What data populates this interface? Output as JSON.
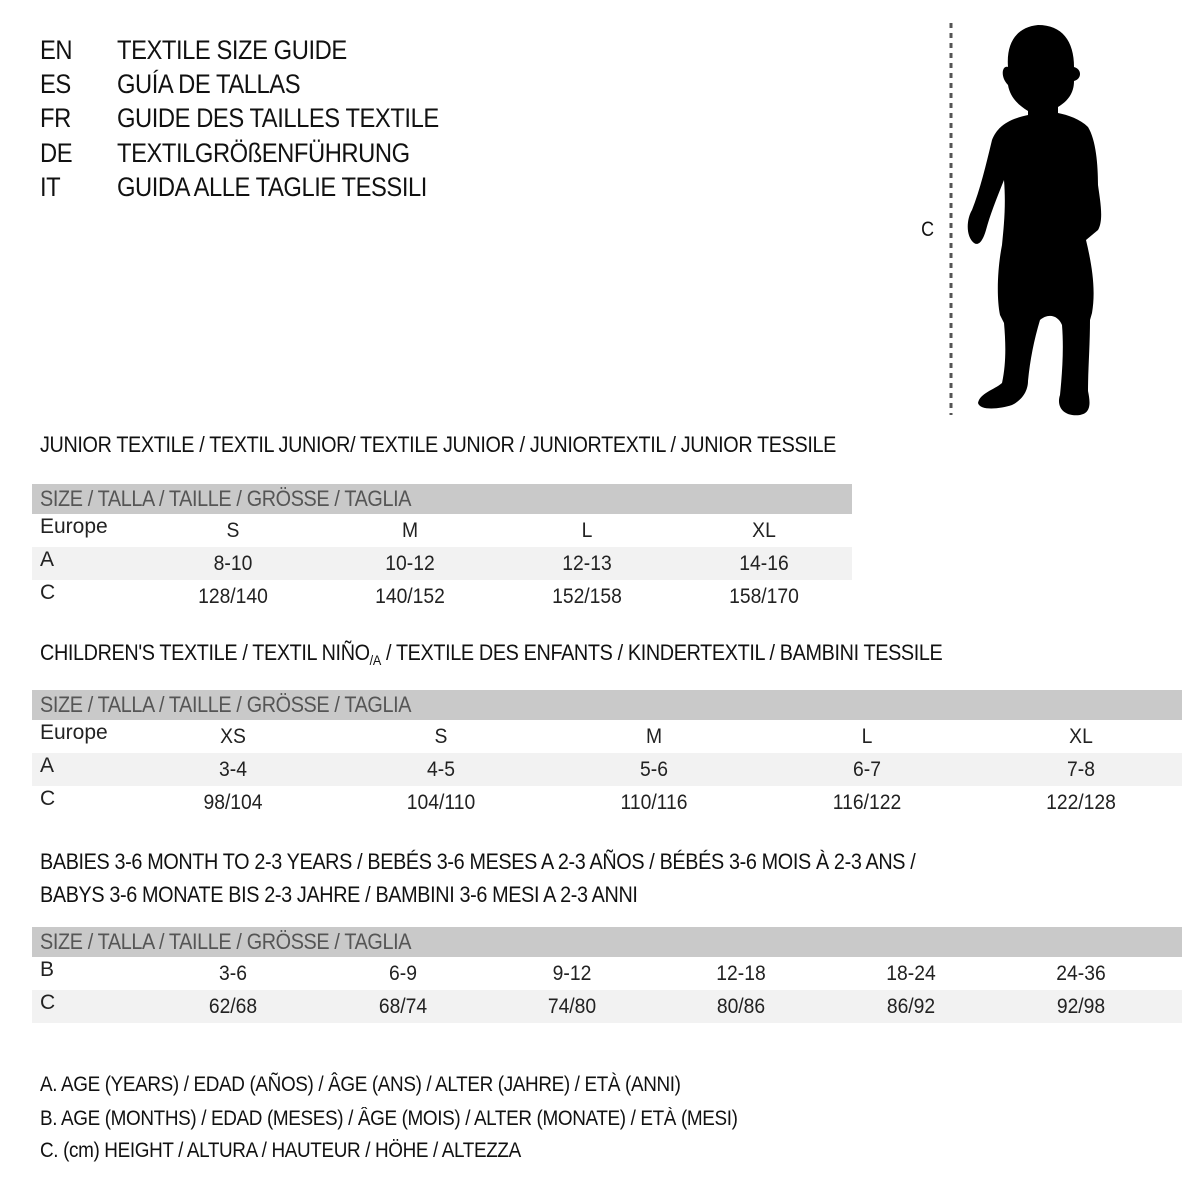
{
  "languages": [
    {
      "code": "EN",
      "title": "TEXTILE SIZE GUIDE"
    },
    {
      "code": "ES",
      "title": "GUÍA DE TALLAS"
    },
    {
      "code": "FR",
      "title": "GUIDE DES TAILLES TEXTILE"
    },
    {
      "code": "DE",
      "title": "TEXTILGRÖßENFÜHRUNG"
    },
    {
      "code": "IT",
      "title": "GUIDA ALLE TAGLIE TESSILI"
    }
  ],
  "figure": {
    "measure_label": "C",
    "icon": "child-silhouette-icon"
  },
  "junior": {
    "title": "JUNIOR TEXTILE / TEXTIL JUNIOR/ TEXTILE JUNIOR / JUNIORTEXTIL / JUNIOR TESSILE",
    "header": "SIZE / TALLA / TAILLE / GRÖSSE / TAGLIA",
    "rows": [
      {
        "label": "Europe",
        "values": [
          "S",
          "M",
          "L",
          "XL"
        ]
      },
      {
        "label": "A",
        "values": [
          "8-10",
          "10-12",
          "12-13",
          "14-16"
        ]
      },
      {
        "label": "C",
        "values": [
          "128/140",
          "140/152",
          "152/158",
          "158/170"
        ]
      }
    ]
  },
  "children": {
    "title_part1": "CHILDREN'S TEXTILE / TEXTIL NIÑO",
    "title_sub": "/A",
    "title_part2": " / TEXTILE DES ENFANTS / KINDERTEXTIL / BAMBINI TESSILE",
    "header": "SIZE / TALLA / TAILLE / GRÖSSE / TAGLIA",
    "rows": [
      {
        "label": "Europe",
        "values": [
          "XS",
          "S",
          "M",
          "L",
          "XL"
        ]
      },
      {
        "label": "A",
        "values": [
          "3-4",
          "4-5",
          "5-6",
          "6-7",
          "7-8"
        ]
      },
      {
        "label": "C",
        "values": [
          "98/104",
          "104/110",
          "110/116",
          "116/122",
          "122/128"
        ]
      }
    ]
  },
  "babies": {
    "title_line1": "BABIES 3-6 MONTH TO 2-3 YEARS / BEBÉS 3-6 MESES A 2-3 AÑOS / BÉBÉS 3-6 MOIS À 2-3 ANS /",
    "title_line2": "BABYS 3-6 MONATE BIS 2-3 JAHRE / BAMBINI 3-6 MESI A 2-3 ANNI",
    "header": "SIZE / TALLA / TAILLE / GRÖSSE / TAGLIA",
    "rows": [
      {
        "label": "B",
        "values": [
          "3-6",
          "6-9",
          "9-12",
          "12-18",
          "18-24",
          "24-36"
        ]
      },
      {
        "label": "C",
        "values": [
          "62/68",
          "68/74",
          "74/80",
          "80/86",
          "86/92",
          "92/98"
        ]
      }
    ]
  },
  "legend": [
    "A. AGE (YEARS) / EDAD (AÑOS) / ÂGE (ANS) / ALTER (JAHRE) / ETÀ (ANNI)",
    "B. AGE (MONTHS) / EDAD (MESES) / ÂGE (MOIS) / ALTER (MONATE) / ETÀ (MESI)",
    "C. (cm) HEIGHT / ALTURA / HAUTEUR / HÖHE / ALTEZZA"
  ],
  "colors": {
    "header_bg": "#c9c9c9",
    "stripe_bg": "#f2f2f2",
    "text": "#111111"
  }
}
